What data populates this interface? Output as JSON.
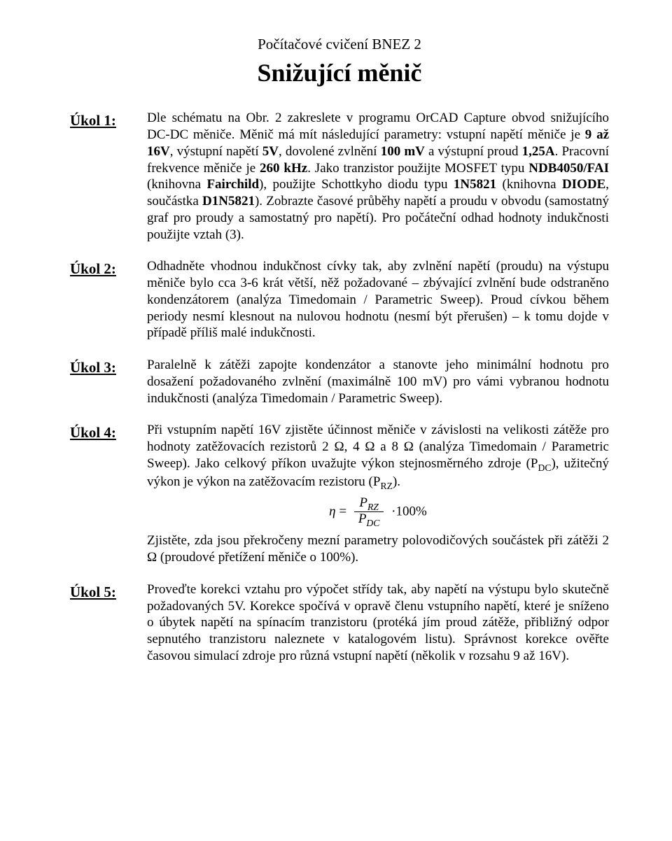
{
  "header": {
    "top_line": "Počítačové cvičení BNEZ 2",
    "title": "Snižující měnič"
  },
  "tasks": [
    {
      "label": "Úkol 1:",
      "body_html": "Dle schématu na Obr. 2 zakreslete v programu OrCAD Capture obvod snižujícího DC-DC měniče. Měnič má mít následující parametry: vstupní napětí měniče je <b>9 až 16V</b>, výstupní napětí <b>5V</b>, dovolené zvlnění <b>100 mV</b> a výstupní proud <b>1,25A</b>. Pracovní frekvence měniče je <b>260 kHz</b>. Jako tranzistor použijte MOSFET typu <b>NDB4050/FAI</b> (knihovna <b>Fairchild</b>), použijte Schottkyho diodu typu <b>1N5821</b> (knihovna <b>DIODE</b>, součástka <b>D1N5821</b>). Zobrazte časové průběhy napětí a proudu v obvodu (samostatný graf pro proudy a samostatný pro napětí). Pro počáteční odhad hodnoty indukčnosti použijte vztah (3)."
    },
    {
      "label": "Úkol 2:",
      "body_html": "Odhadněte vhodnou indukčnost cívky tak, aby zvlnění napětí (proudu) na výstupu měniče bylo cca 3-6 krát větší, něž požadované – zbývající zvlnění bude odstraněno kondenzátorem (analýza Timedomain / Parametric Sweep). Proud cívkou během periody nesmí klesnout na nulovou hodnotu (nesmí být přerušen) – k tomu dojde v případě příliš malé indukčnosti."
    },
    {
      "label": "Úkol 3:",
      "body_html": "Paralelně k zátěži zapojte kondenzátor a stanovte jeho minimální hodnotu pro dosažení požadovaného zvlnění (maximálně 100 mV) pro vámi vybranou hodnotu indukčnosti (analýza Timedomain / Parametric Sweep)."
    },
    {
      "label": "Úkol 4:",
      "body_html": "Při vstupním napětí 16V zjistěte účinnost měniče v závislosti na velikosti zátěže pro hodnoty zatěžovacích rezistorů 2 Ω, 4 Ω a 8 Ω (analýza Timedomain / Parametric Sweep). Jako celkový příkon uvažujte výkon stejnosměrného zdroje (P<sub>DC</sub>), užitečný výkon je výkon na zatěžovacím rezistoru (P<sub>RZ</sub>).",
      "formula": {
        "eta": "η",
        "eq": "=",
        "num": "P",
        "num_sub": "RZ",
        "den": "P",
        "den_sub": "DC",
        "tail": "·100%"
      },
      "after_formula_html": "Zjistěte, zda jsou překročeny mezní parametry polovodičových součástek při zátěži 2 Ω (proudové přetížení měniče o 100%)."
    },
    {
      "label": "Úkol 5:",
      "body_html": "Proveďte korekci vztahu pro výpočet střídy tak, aby napětí na výstupu bylo skutečně požadovaných 5V. Korekce spočívá v opravě členu vstupního napětí, které je sníženo o úbytek napětí na spínacím tranzistoru (protéká jím proud zátěže, přibližný odpor sepnutého tranzistoru naleznete v katalogovém listu). Správnost korekce ověřte časovou simulací zdroje pro různá vstupní napětí (několik v rozsahu 9 až 16V)."
    }
  ]
}
